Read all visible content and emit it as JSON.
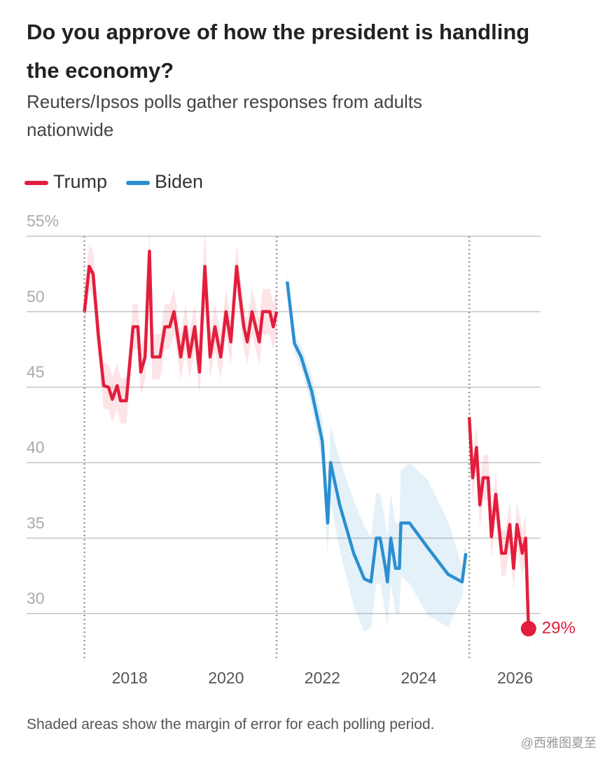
{
  "chart_data": {
    "type": "line",
    "title": "Do you approve of how the president is handling the economy?",
    "subtitle": "Reuters/Ipsos polls gather responses from adults nationwide",
    "note": "Shaded areas show the margin of error for each polling period.",
    "watermark": "@西雅图夏至",
    "xlim": [
      2015.86,
      2026.53
    ],
    "xticks": [
      2018,
      2020,
      2022,
      2024,
      2026
    ],
    "ylim": [
      27,
      55
    ],
    "yticks": [
      30,
      35,
      40,
      45,
      50,
      {
        "value": 55,
        "label": "55%"
      }
    ],
    "grid": true,
    "vlines": [
      2017.06,
      2021.05,
      2025.05
    ],
    "series": [
      {
        "name": "Trump",
        "color": "#e31e3c",
        "x": [
          2017.06,
          2017.16,
          2017.24,
          2017.35,
          2017.46,
          2017.56,
          2017.64,
          2017.74,
          2017.81,
          2017.93,
          2018.07,
          2018.17,
          2018.23,
          2018.32,
          2018.41,
          2018.47,
          2018.63,
          2018.73,
          2018.83,
          2018.92,
          2019.06,
          2019.16,
          2019.24,
          2019.35,
          2019.45,
          2019.56,
          2019.67,
          2019.77,
          2019.89,
          2020.0,
          2020.1,
          2020.22,
          2020.29,
          2020.37,
          2020.44,
          2020.54,
          2020.69,
          2020.76,
          2020.91,
          2020.98,
          2021.05,
          2023.0,
          2025.05,
          2025.12,
          2025.2,
          2025.27,
          2025.34,
          2025.44,
          2025.51,
          2025.6,
          2025.72,
          2025.8,
          2025.89,
          2025.97,
          2026.04,
          2026.15,
          2026.22,
          2026.28
        ],
        "values": [
          50,
          53,
          52.5,
          48.4,
          45.1,
          45,
          44.2,
          45.1,
          44.1,
          44.1,
          49,
          49,
          46,
          47,
          54,
          47,
          47,
          49,
          49,
          50,
          47,
          49,
          47,
          49,
          46,
          53,
          47,
          49,
          47,
          50,
          48,
          53,
          51,
          49,
          48,
          50,
          48,
          50,
          50,
          49,
          50,
          null,
          43,
          39,
          41,
          37.2,
          39,
          39,
          35.1,
          37.9,
          34,
          34,
          35.9,
          33,
          35.9,
          34,
          35,
          29
        ],
        "error": [
          1.5,
          1.5,
          1.5,
          1.5,
          1.5,
          1.5,
          1.5,
          1.5,
          1.5,
          1.5,
          1.5,
          1.5,
          1.5,
          1.5,
          1.5,
          1.5,
          1.5,
          1.5,
          1.5,
          1.5,
          1.5,
          1.5,
          1.5,
          1.5,
          1.5,
          2.5,
          1.5,
          1.5,
          1.5,
          1.5,
          1.5,
          1.5,
          1.5,
          1.5,
          1.5,
          1.5,
          1.5,
          1.5,
          1.5,
          1.5,
          1.5,
          null,
          1.5,
          1.5,
          1.5,
          1.5,
          1.5,
          1.5,
          1.5,
          1.5,
          1.5,
          1.5,
          1.5,
          1.5,
          1.5,
          1.5,
          1.5,
          1.5
        ],
        "value_labels": [
          null,
          null,
          null,
          null,
          null,
          null,
          null,
          null,
          null,
          null,
          null,
          null,
          null,
          null,
          null,
          null,
          null,
          null,
          null,
          null,
          null,
          null,
          null,
          null,
          null,
          null,
          null,
          null,
          null,
          null,
          null,
          null,
          null,
          null,
          null,
          null,
          null,
          null,
          null,
          null,
          null,
          null,
          null,
          null,
          null,
          null,
          null,
          null,
          null,
          null,
          null,
          null,
          null,
          null,
          null,
          null,
          null,
          "29%"
        ]
      },
      {
        "name": "Biden",
        "color": "#2a8fd0",
        "x": [
          2021.27,
          2021.42,
          2021.56,
          2021.78,
          2022.0,
          2022.11,
          2022.17,
          2022.36,
          2022.65,
          2022.87,
          2023.01,
          2023.12,
          2023.2,
          2023.31,
          2023.35,
          2023.42,
          2023.52,
          2023.6,
          2023.63,
          2023.81,
          2024.18,
          2024.61,
          2024.9,
          2024.98
        ],
        "values": [
          52,
          47.9,
          47,
          44.7,
          41.4,
          36,
          40,
          37.2,
          34,
          32.3,
          32.1,
          35,
          35,
          33,
          32.1,
          35,
          33,
          33,
          36,
          36,
          34.4,
          32.6,
          32.1,
          34
        ],
        "error": [
          0.5,
          0.6,
          0.8,
          1,
          1.5,
          2,
          2.5,
          3,
          3.5,
          3.5,
          3,
          3,
          3,
          3,
          3,
          3,
          3,
          3,
          3.5,
          4,
          4.5,
          3.5,
          1,
          1
        ]
      }
    ]
  }
}
